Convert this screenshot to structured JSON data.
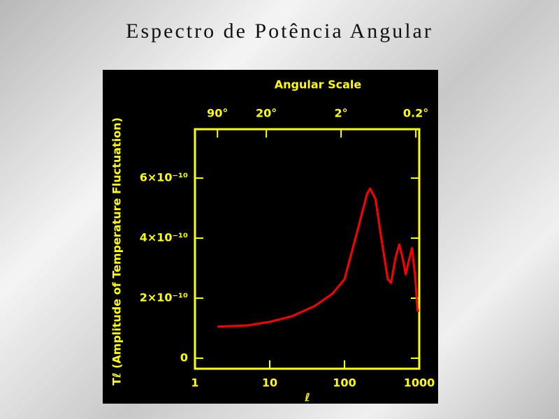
{
  "chart_data": {
    "type": "line",
    "title": "Espectro de Potência Angular",
    "xlabel": "ℓ",
    "ylabel": "Tℓ (Amplitude of Temperature Fluctuation)",
    "x2label": "Angular Scale",
    "xscale": "log",
    "xlim": [
      1,
      1000
    ],
    "xticks": [
      1,
      10,
      100,
      1000
    ],
    "x2ticks": [
      {
        "value": 2,
        "label": "90°"
      },
      {
        "value": 9,
        "label": "20°"
      },
      {
        "value": 90,
        "label": "2°"
      },
      {
        "value": 900,
        "label": "0.2°"
      }
    ],
    "ylim": [
      -3.5e-11,
      7.63e-10
    ],
    "yticks": [
      0,
      {
        "value": 2e-10,
        "label": "2×10⁻¹⁰"
      },
      {
        "value": 4e-10,
        "label": "4×10⁻¹⁰"
      },
      {
        "value": 6e-10,
        "label": "6×10⁻¹⁰"
      }
    ],
    "x": [
      2,
      5,
      10,
      20,
      40,
      70,
      100,
      150,
      200,
      220,
      260,
      320,
      380,
      420,
      480,
      540,
      600,
      660,
      720,
      800,
      880,
      950,
      1000
    ],
    "series": [
      {
        "color": "#ff0000",
        "values": [
          1.05e-10,
          1.09e-10,
          1.21e-10,
          1.4e-10,
          1.74e-10,
          2.16e-10,
          2.63e-10,
          4.26e-10,
          5.47e-10,
          5.65e-10,
          5.3e-10,
          3.79e-10,
          2.63e-10,
          2.51e-10,
          3.33e-10,
          3.79e-10,
          3.33e-10,
          2.79e-10,
          3.21e-10,
          3.67e-10,
          2.74e-10,
          1.58e-10,
          1.58e-10
        ]
      }
    ],
    "axis_color": "#ffff00",
    "background": "#000000"
  }
}
